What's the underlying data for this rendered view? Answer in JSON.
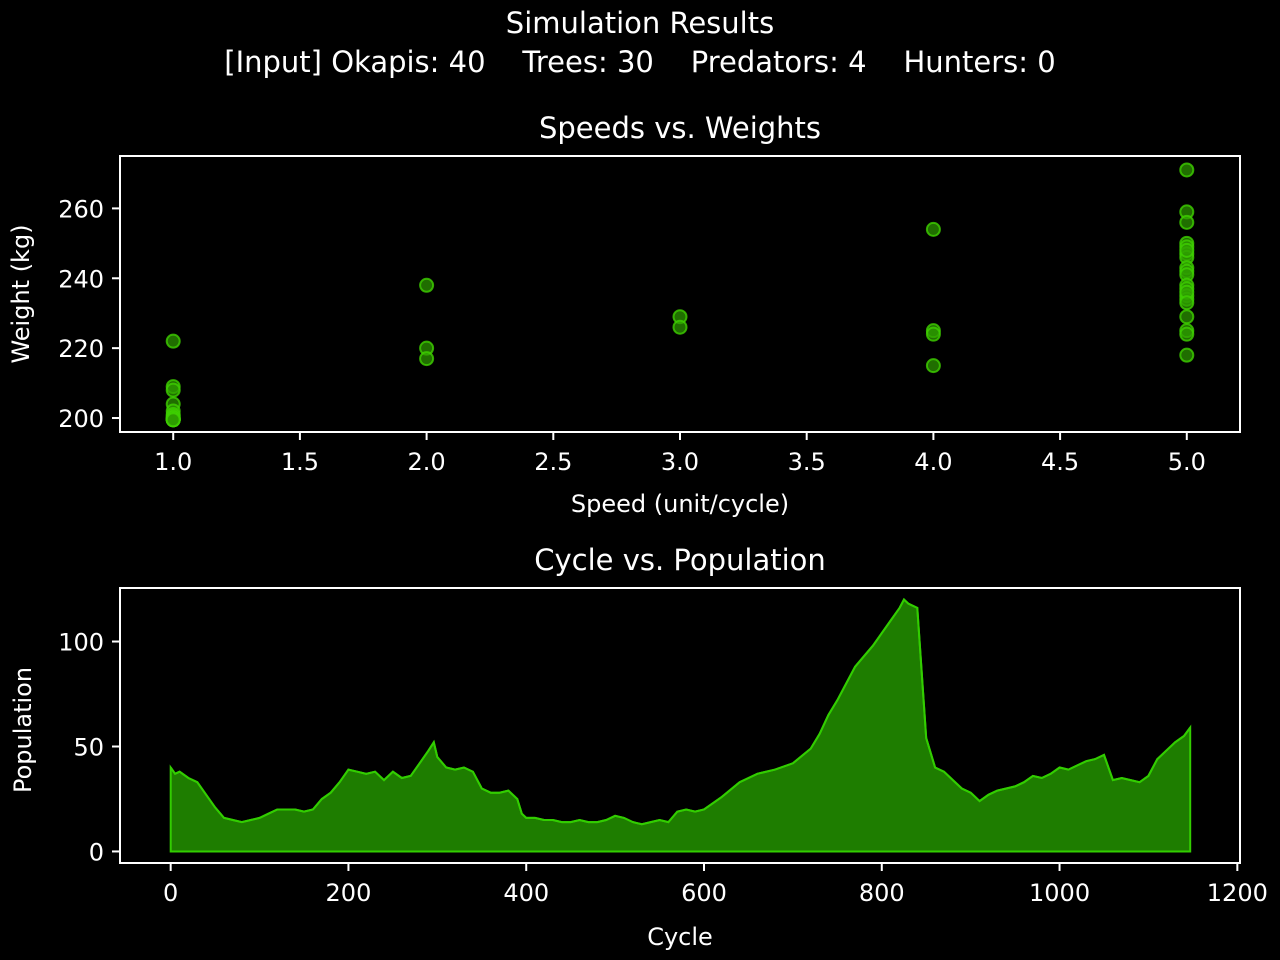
{
  "title": "Simulation Results",
  "subtitle": "[Input] Okapis: 40    Trees: 30    Predators: 4    Hunters: 0",
  "colors": {
    "background": "#000000",
    "axes": "#ffffff",
    "scatter_fill": "#2e9c00",
    "scatter_edge": "#3fd000",
    "area_fill": "#1e7d00",
    "area_line": "#32cd00"
  },
  "chart_data": [
    {
      "type": "scatter",
      "title": "Speeds vs. Weights",
      "xlabel": "Speed (unit/cycle)",
      "ylabel": "Weight (kg)",
      "xlim": [
        0.79,
        5.21
      ],
      "ylim": [
        196,
        275
      ],
      "xticks": [
        1.0,
        1.5,
        2.0,
        2.5,
        3.0,
        3.5,
        4.0,
        4.5,
        5.0
      ],
      "xtick_labels": [
        "1.0",
        "1.5",
        "2.0",
        "2.5",
        "3.0",
        "3.5",
        "4.0",
        "4.5",
        "5.0"
      ],
      "yticks": [
        200,
        220,
        240,
        260
      ],
      "ytick_labels": [
        "200",
        "220",
        "240",
        "260"
      ],
      "grid": false,
      "legend": "none",
      "x": [
        1,
        1,
        1,
        1,
        1,
        1,
        1,
        1,
        1,
        1,
        1,
        1,
        1,
        1,
        1,
        1,
        2,
        2,
        2,
        3,
        3,
        4,
        4,
        4,
        4,
        5,
        5,
        5,
        5,
        5,
        5,
        5,
        5,
        5,
        5,
        5,
        5,
        5,
        5,
        5,
        5,
        5,
        5,
        5,
        5,
        5
      ],
      "y": [
        222,
        209,
        208,
        204,
        202,
        201,
        200.5,
        200,
        200,
        200,
        199.5,
        199.5,
        199.5,
        199.5,
        199.5,
        199.5,
        238,
        220,
        217,
        229,
        226,
        254,
        225,
        224,
        215,
        271,
        259,
        256,
        250,
        249,
        247,
        246,
        243,
        242,
        241,
        238,
        237,
        235,
        234,
        229,
        225,
        224,
        218,
        248,
        236,
        233
      ]
    },
    {
      "type": "area",
      "title": "Cycle vs. Population",
      "xlabel": "Cycle",
      "ylabel": "Population",
      "xlim": [
        -57,
        1203
      ],
      "ylim": [
        -5.5,
        125.5
      ],
      "xticks": [
        0,
        200,
        400,
        600,
        800,
        1000,
        1200
      ],
      "xtick_labels": [
        "0",
        "200",
        "400",
        "600",
        "800",
        "1000",
        "1200"
      ],
      "yticks": [
        0,
        50,
        100
      ],
      "ytick_labels": [
        "0",
        "50",
        "100"
      ],
      "grid": false,
      "legend": "none",
      "x": [
        0,
        5,
        10,
        20,
        30,
        40,
        50,
        60,
        70,
        80,
        90,
        100,
        110,
        120,
        130,
        140,
        150,
        160,
        170,
        180,
        190,
        200,
        210,
        220,
        230,
        240,
        250,
        260,
        270,
        280,
        290,
        296,
        300,
        310,
        320,
        330,
        340,
        350,
        360,
        370,
        380,
        390,
        395,
        400,
        410,
        420,
        430,
        440,
        450,
        460,
        470,
        480,
        490,
        500,
        510,
        520,
        530,
        540,
        550,
        560,
        570,
        580,
        590,
        600,
        620,
        640,
        660,
        680,
        700,
        720,
        730,
        740,
        750,
        760,
        770,
        780,
        790,
        800,
        810,
        820,
        825,
        830,
        840,
        850,
        860,
        870,
        880,
        890,
        900,
        910,
        920,
        930,
        940,
        950,
        960,
        970,
        980,
        990,
        1000,
        1010,
        1020,
        1030,
        1040,
        1050,
        1060,
        1070,
        1080,
        1090,
        1100,
        1110,
        1120,
        1130,
        1140,
        1147
      ],
      "y": [
        40,
        37,
        38,
        35,
        33,
        27,
        21,
        16,
        15,
        14,
        15,
        16,
        18,
        20,
        20,
        20,
        19,
        20,
        25,
        28,
        33,
        39,
        38,
        37,
        38,
        34,
        38,
        35,
        36,
        42,
        48,
        52,
        45,
        40,
        39,
        40,
        38,
        30,
        28,
        28,
        29,
        25,
        18,
        16,
        16,
        15,
        15,
        14,
        14,
        15,
        14,
        14,
        15,
        17,
        16,
        14,
        13,
        14,
        15,
        14,
        19,
        20,
        19,
        20,
        26,
        33,
        37,
        39,
        42,
        49,
        56,
        65,
        72,
        80,
        88,
        93,
        98,
        104,
        110,
        116,
        120,
        118,
        116,
        54,
        40,
        38,
        34,
        30,
        28,
        24,
        27,
        29,
        30,
        31,
        33,
        36,
        35,
        37,
        40,
        39,
        41,
        43,
        44,
        46,
        34,
        35,
        34,
        33,
        36,
        44,
        48,
        52,
        55,
        59
      ]
    }
  ]
}
